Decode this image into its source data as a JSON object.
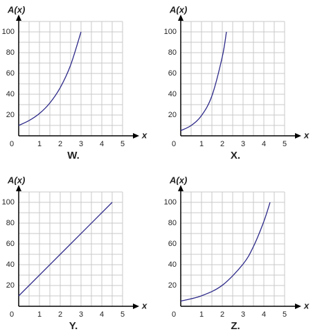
{
  "chart_data": [
    {
      "type": "line",
      "title": "W.",
      "x_label": "x",
      "y_label": "A(x)",
      "color": "#2e2a8a",
      "x": [
        0,
        0.5,
        1,
        1.5,
        2,
        2.5,
        3
      ],
      "values": [
        10,
        14.7,
        21.5,
        31.6,
        46.4,
        68.1,
        100
      ],
      "xlim": [
        0,
        5
      ],
      "ylim": [
        0,
        110
      ],
      "xticks": [
        0,
        1,
        2,
        3,
        4,
        5
      ],
      "yticks": [
        20,
        40,
        60,
        80,
        100
      ],
      "grid": true
    },
    {
      "type": "line",
      "title": "X.",
      "x_label": "x",
      "y_label": "A(x)",
      "color": "#2e2a8a",
      "x": [
        0,
        0.5,
        1,
        1.5,
        2,
        2.2
      ],
      "values": [
        5,
        9.9,
        19.5,
        38.4,
        76,
        100
      ],
      "xlim": [
        0,
        5
      ],
      "ylim": [
        0,
        110
      ],
      "xticks": [
        0,
        1,
        2,
        3,
        4,
        5
      ],
      "yticks": [
        20,
        40,
        60,
        80,
        100
      ],
      "grid": true
    },
    {
      "type": "line",
      "title": "Y.",
      "x_label": "x",
      "y_label": "A(x)",
      "color": "#2e2a8a",
      "x": [
        0,
        4.5
      ],
      "values": [
        10,
        100
      ],
      "xlim": [
        0,
        5
      ],
      "ylim": [
        0,
        110
      ],
      "xticks": [
        0,
        1,
        2,
        3,
        4,
        5
      ],
      "yticks": [
        20,
        40,
        60,
        80,
        100
      ],
      "grid": true
    },
    {
      "type": "line",
      "title": "Z.",
      "x_label": "x",
      "y_label": "A(x)",
      "color": "#2e2a8a",
      "x": [
        0,
        1,
        2,
        3,
        3.5,
        4,
        4.3
      ],
      "values": [
        5,
        10.1,
        20.2,
        40.6,
        57.5,
        81.6,
        100
      ],
      "xlim": [
        0,
        5
      ],
      "ylim": [
        0,
        110
      ],
      "xticks": [
        0,
        1,
        2,
        3,
        4,
        5
      ],
      "yticks": [
        20,
        40,
        60,
        80,
        100
      ],
      "grid": true
    }
  ]
}
